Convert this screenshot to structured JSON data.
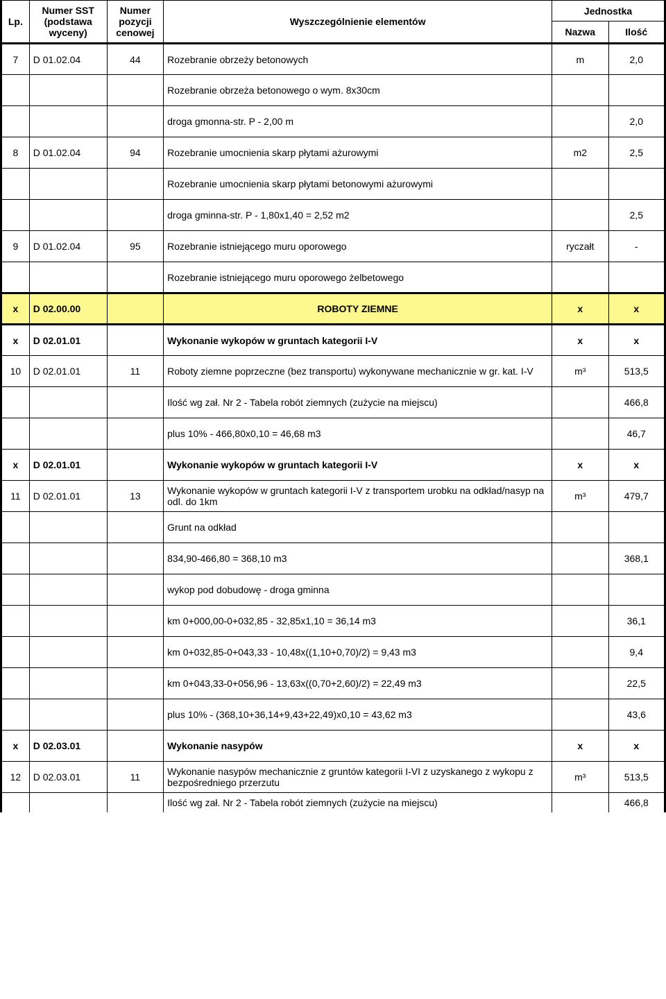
{
  "header": {
    "lp": "Lp.",
    "sst": "Numer SST (podstawa wyceny)",
    "num": "Numer pozycji cenowej",
    "desc": "Wyszczególnienie elementów",
    "unit_group": "Jednostka",
    "unit_name": "Nazwa",
    "unit_qty": "Ilość"
  },
  "rows": [
    {
      "lp": "7",
      "sst": "D 01.02.04",
      "num": "44",
      "desc": "Rozebranie obrzeży betonowych",
      "unit": "m",
      "qty": "2,0",
      "tall": true
    },
    {
      "desc": "Rozebranie obrzeża betonowego o wym. 8x30cm",
      "tall": true
    },
    {
      "desc": "droga gmonna-str. P - 2,00 m",
      "qty": "2,0",
      "tall": true
    },
    {
      "lp": "8",
      "sst": "D 01.02.04",
      "num": "94",
      "desc": "Rozebranie umocnienia skarp płytami ażurowymi",
      "unit": "m2",
      "qty": "2,5",
      "tall": true
    },
    {
      "desc": "Rozebranie umocnienia skarp płytami betonowymi ażurowymi",
      "tall": true
    },
    {
      "desc": "droga gminna-str. P - 1,80x1,40 = 2,52 m2",
      "qty": "2,5",
      "tall": true
    },
    {
      "lp": "9",
      "sst": "D 01.02.04",
      "num": "95",
      "desc": "Rozebranie istniejącego muru oporowego",
      "unit": "ryczałt",
      "qty": "-",
      "tall": true
    },
    {
      "desc": "Rozebranie istniejącego muru oporowego żelbetowego",
      "tall": true,
      "thickBottom": true
    },
    {
      "lp": "x",
      "sst": "D 02.00.00",
      "num": "",
      "desc": "ROBOTY ZIEMNE",
      "unit": "x",
      "qty": "x",
      "bold": true,
      "highlight": true,
      "descCenter": true,
      "tall": true,
      "thickBottom": true,
      "thickTop": true
    },
    {
      "lp": "x",
      "sst": "D 02.01.01",
      "num": "",
      "desc": "Wykonanie wykopów w gruntach kategorii I-V",
      "unit": "x",
      "qty": "x",
      "bold": true,
      "tall": true
    },
    {
      "lp": "10",
      "sst": "D 02.01.01",
      "num": "11",
      "desc": "Roboty ziemne poprzeczne (bez transportu) wykonywane mechanicznie w gr. kat. I-V",
      "unit": "m³",
      "qty": "513,5",
      "tall": true
    },
    {
      "desc": "Ilość wg zał. Nr 2 - Tabela robót ziemnych (zużycie na miejscu)",
      "qty": "466,8",
      "tall": true
    },
    {
      "desc": "plus 10% - 466,80x0,10 = 46,68 m3",
      "qty": "46,7",
      "tall": true
    },
    {
      "lp": "x",
      "sst": "D 02.01.01",
      "num": "",
      "desc": "Wykonanie wykopów w gruntach kategorii I-V",
      "unit": "x",
      "qty": "x",
      "bold": true,
      "tall": true
    },
    {
      "lp": "11",
      "sst": "D 02.01.01",
      "num": "13",
      "desc": "Wykonanie wykopów w gruntach kategorii I-V z transportem urobku na odkład/nasyp na odl. do 1km",
      "unit": "m³",
      "qty": "479,7",
      "tall": true
    },
    {
      "desc": "Grunt na odkład",
      "tall": true
    },
    {
      "desc": "834,90-466,80 = 368,10 m3",
      "qty": "368,1",
      "tall": true
    },
    {
      "desc": "wykop pod dobudowę - droga gminna",
      "tall": true
    },
    {
      "desc": "km 0+000,00-0+032,85 - 32,85x1,10 = 36,14 m3",
      "qty": "36,1",
      "tall": true
    },
    {
      "desc": "km 0+032,85-0+043,33 - 10,48x((1,10+0,70)/2) = 9,43 m3",
      "qty": "9,4",
      "tall": true
    },
    {
      "desc": "km 0+043,33-0+056,96 - 13,63x((0,70+2,60)/2) = 22,49 m3",
      "qty": "22,5",
      "tall": true
    },
    {
      "desc": "plus 10% - (368,10+36,14+9,43+22,49)x0,10 = 43,62 m3",
      "qty": "43,6",
      "tall": true
    },
    {
      "lp": "x",
      "sst": "D 02.03.01",
      "num": "",
      "desc": "Wykonanie nasypów",
      "unit": "x",
      "qty": "x",
      "bold": true,
      "tall": true
    },
    {
      "lp": "12",
      "sst": "D 02.03.01",
      "num": "11",
      "desc": "Wykonanie nasypów mechanicznie z gruntów kategorii I-VI z uzyskanego z wykopu z bezpośredniego przerzutu",
      "unit": "m³",
      "qty": "513,5",
      "tall": true
    },
    {
      "desc": "Ilość wg zał. Nr 2 - Tabela robót ziemnych (zużycie na miejscu)",
      "qty": "466,8",
      "noBottom": true
    }
  ]
}
